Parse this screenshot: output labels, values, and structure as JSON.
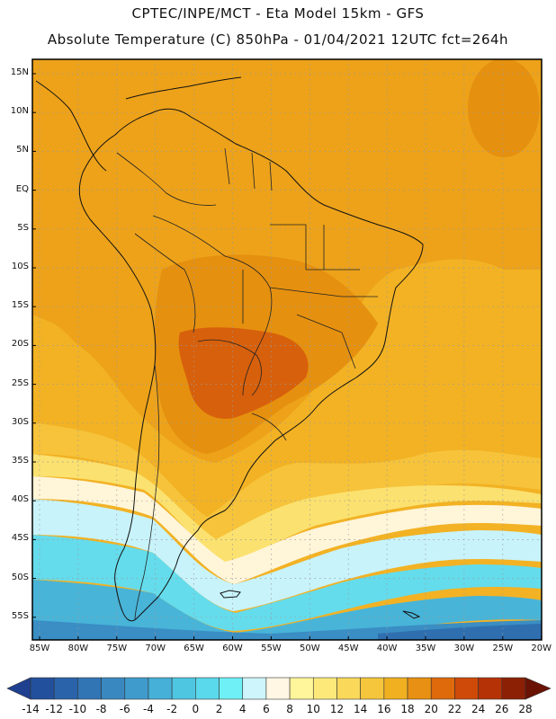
{
  "title_line1": "CPTEC/INPE/MCT  -   Eta Model 15km  -  GFS",
  "title_line2": "Absolute Temperature (C) 850hPa - 01/04/2021 12UTC fct=264h",
  "lat_labels": [
    "15N",
    "10N",
    "5N",
    "EQ",
    "5S",
    "10S",
    "15S",
    "20S",
    "25S",
    "30S",
    "35S",
    "40S",
    "45S",
    "50S",
    "55S"
  ],
  "lon_labels": [
    "85W",
    "80W",
    "75W",
    "70W",
    "65W",
    "60W",
    "55W",
    "50W",
    "45W",
    "40W",
    "35W",
    "30W",
    "25W",
    "20W"
  ],
  "colorbar": {
    "labels": [
      "-14",
      "-12",
      "-10",
      "-8",
      "-6",
      "-4",
      "-2",
      "0",
      "2",
      "4",
      "6",
      "8",
      "10",
      "12",
      "14",
      "16",
      "18",
      "20",
      "22",
      "24",
      "26",
      "28"
    ],
    "colors": [
      "#1f3f8f",
      "#23509c",
      "#2a63aa",
      "#3275b5",
      "#3a88c0",
      "#3f9bcc",
      "#46b0d8",
      "#4ec6e2",
      "#5ad8ec",
      "#6ff0f6",
      "#cdf5fb",
      "#fff7e3",
      "#fff59a",
      "#fde97a",
      "#f9d85a",
      "#f5c63c",
      "#f0b020",
      "#e89013",
      "#de6a0c",
      "#cf4a08",
      "#b53207",
      "#8c2005",
      "#6a1204"
    ]
  },
  "colors": {
    "hot_core": "#d7600c",
    "warm": "#e5900f",
    "orange": "#eda21a",
    "amber": "#f2b224",
    "yellow": "#f6c33a",
    "pale_yellow": "#fbe16f",
    "cream": "#fff5d9",
    "light_cyan": "#c8f3fb",
    "cyan": "#64dcec",
    "blue1": "#48b4d8",
    "blue2": "#3a8ec4",
    "blue3": "#2f6fb0"
  }
}
